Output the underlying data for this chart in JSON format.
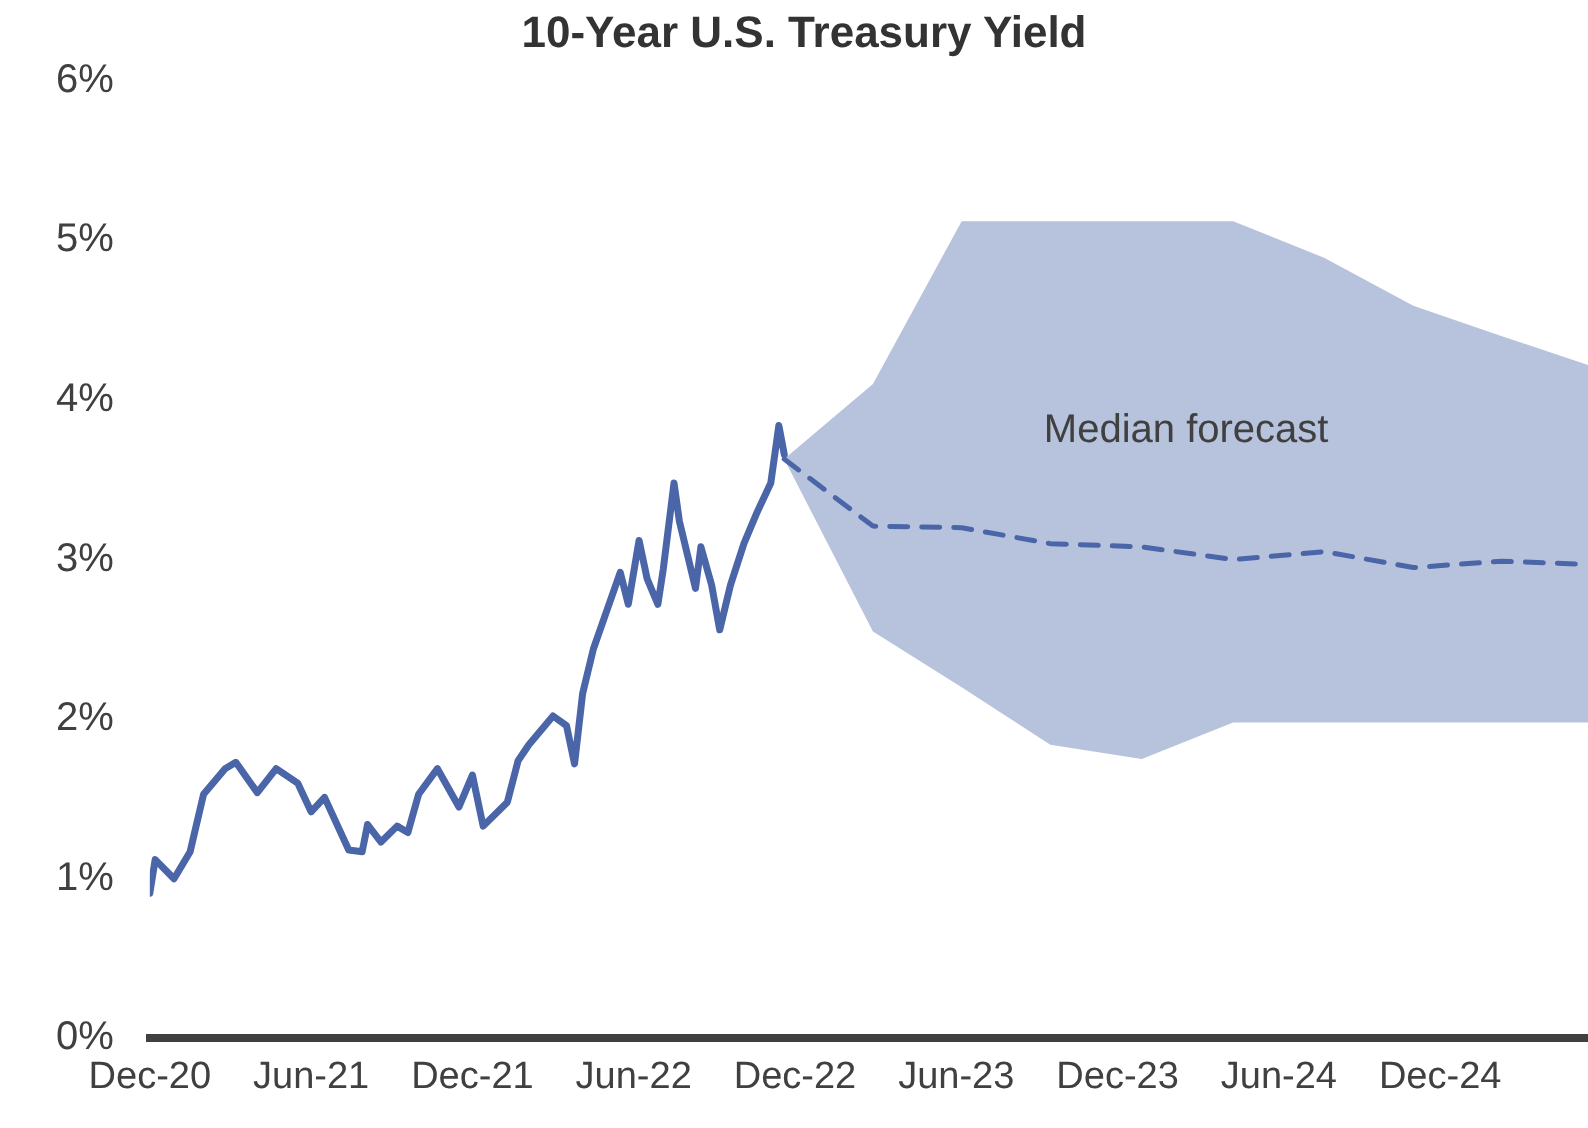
{
  "chart_data": {
    "type": "line",
    "title": "10-Year U.S. Treasury Yield",
    "xlim": [
      "2020-12-01",
      "2025-05-16"
    ],
    "xticks": [
      {
        "value": "2020-12",
        "label": "Dec-20"
      },
      {
        "value": "2021-06",
        "label": "Jun-21"
      },
      {
        "value": "2021-12",
        "label": "Dec-21"
      },
      {
        "value": "2022-06",
        "label": "Jun-22"
      },
      {
        "value": "2022-12",
        "label": "Dec-22"
      },
      {
        "value": "2023-06",
        "label": "Jun-23"
      },
      {
        "value": "2023-12",
        "label": "Dec-23"
      },
      {
        "value": "2024-06",
        "label": "Jun-24"
      },
      {
        "value": "2024-12",
        "label": "Dec-24"
      }
    ],
    "ylim": [
      0,
      6
    ],
    "yticks": [
      {
        "value": 0,
        "label": "0%"
      },
      {
        "value": 1,
        "label": "1%"
      },
      {
        "value": 2,
        "label": "2%"
      },
      {
        "value": 3,
        "label": "3%"
      },
      {
        "value": 4,
        "label": "4%"
      },
      {
        "value": 5,
        "label": "5%"
      },
      {
        "value": 6,
        "label": "6%"
      }
    ],
    "grid": false,
    "legend": false,
    "marker": "none",
    "series": [
      {
        "color": "#4a66a8",
        "line_style": "solid",
        "x": [
          "2020-12-01",
          "2020-12-07",
          "2020-12-28",
          "2021-01-16",
          "2021-02-01",
          "2021-02-25",
          "2021-03-07",
          "2021-04-01",
          "2021-04-22",
          "2021-05-16",
          "2021-06-01",
          "2021-06-16",
          "2021-07-13",
          "2021-07-28",
          "2021-08-04",
          "2021-08-19",
          "2021-09-07",
          "2021-09-19",
          "2021-10-01",
          "2021-10-22",
          "2021-11-16",
          "2021-12-01",
          "2021-12-13",
          "2022-01-10",
          "2022-01-22",
          "2022-02-04",
          "2022-03-01",
          "2022-03-16",
          "2022-03-25",
          "2022-04-04",
          "2022-04-16",
          "2022-05-01",
          "2022-05-16",
          "2022-05-25",
          "2022-06-07",
          "2022-06-16",
          "2022-06-28",
          "2022-07-04",
          "2022-07-16",
          "2022-07-22",
          "2022-08-10",
          "2022-08-16",
          "2022-08-28",
          "2022-09-07",
          "2022-09-19",
          "2022-10-04",
          "2022-10-19",
          "2022-11-04",
          "2022-11-13",
          "2022-11-19"
        ],
        "values": [
          0.91,
          1.12,
          1.0,
          1.17,
          1.53,
          1.69,
          1.73,
          1.54,
          1.69,
          1.6,
          1.42,
          1.51,
          1.18,
          1.17,
          1.34,
          1.23,
          1.33,
          1.29,
          1.53,
          1.69,
          1.45,
          1.65,
          1.33,
          1.48,
          1.74,
          1.84,
          2.02,
          1.96,
          1.72,
          2.16,
          2.44,
          2.68,
          2.92,
          2.72,
          3.12,
          2.88,
          2.72,
          2.94,
          3.48,
          3.24,
          2.82,
          3.08,
          2.84,
          2.56,
          2.84,
          3.1,
          3.3,
          3.48,
          3.84,
          3.66
        ]
      },
      {
        "name": "Median forecast",
        "color": "#4a66a8",
        "line_style": "dashed",
        "x": [
          "2022-11-19",
          "2023-02-28",
          "2023-06-07",
          "2023-09-16",
          "2023-12-28",
          "2024-04-10",
          "2024-07-22",
          "2024-11-01",
          "2025-02-10",
          "2025-05-16"
        ],
        "values": [
          3.63,
          3.21,
          3.2,
          3.1,
          3.08,
          3.0,
          3.05,
          2.95,
          2.99,
          2.97
        ],
        "lower": [
          3.63,
          2.55,
          2.2,
          1.84,
          1.75,
          1.98,
          1.98,
          1.98,
          1.98,
          1.98
        ],
        "upper": [
          3.63,
          4.1,
          5.12,
          5.12,
          5.12,
          5.12,
          4.89,
          4.59,
          4.4,
          4.22
        ]
      }
    ]
  }
}
